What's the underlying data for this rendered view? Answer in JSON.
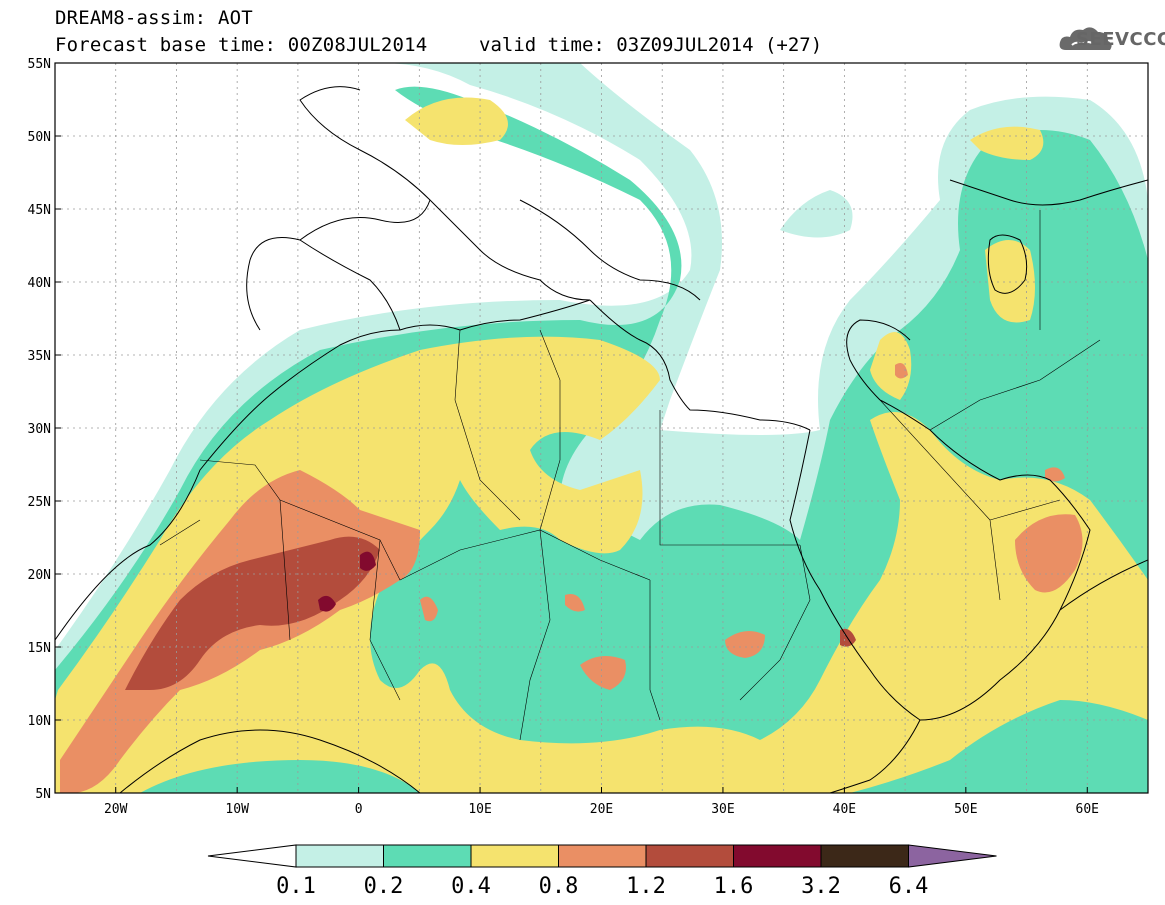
{
  "header": {
    "title_line1": "DREAM8-assim: AOT",
    "title_line2": "Forecast base time: 00Z08JUL2014",
    "valid_time": "valid time: 03Z09JUL2014 (+27)",
    "logo_text": "SEEVCCC",
    "logo_icon": "cloud-icon"
  },
  "map": {
    "lon_range": [
      -25,
      65
    ],
    "lat_range": [
      5,
      55
    ],
    "lat_labels": [
      "55N",
      "50N",
      "45N",
      "40N",
      "35N",
      "30N",
      "25N",
      "20N",
      "15N",
      "10N",
      "5N"
    ],
    "lat_values": [
      55,
      50,
      45,
      40,
      35,
      30,
      25,
      20,
      15,
      10,
      5
    ],
    "lon_labels": [
      "20W",
      "10W",
      "0",
      "10E",
      "20E",
      "30E",
      "40E",
      "50E",
      "60E"
    ],
    "lon_values": [
      -20,
      -10,
      0,
      10,
      20,
      30,
      40,
      50,
      60
    ],
    "grid_lon_step": 5,
    "grid_lat_step": 5
  },
  "colorbar": {
    "labels": [
      "0.1",
      "0.2",
      "0.4",
      "0.8",
      "1.2",
      "1.6",
      "3.2",
      "6.4"
    ],
    "colors": [
      "#ffffff",
      "#c4f0e6",
      "#5ddcb4",
      "#f5e36e",
      "#ea8f64",
      "#b34c3c",
      "#820a2e",
      "#3c2818",
      "#8c64a0"
    ]
  }
}
